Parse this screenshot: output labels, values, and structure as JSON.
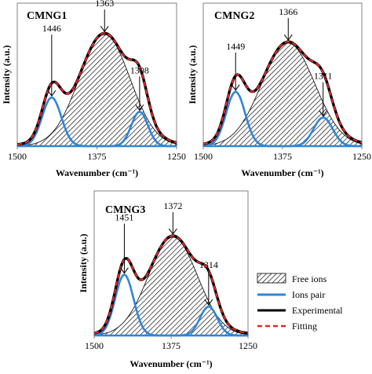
{
  "chart_data": [
    {
      "type": "area",
      "title": "CMNG1",
      "xlabel": "Wavenumber (cm⁻¹)",
      "ylabel": "Intensity (a.u.)",
      "xlim": [
        1500,
        1250
      ],
      "x_ticks": [
        "1500",
        "1375",
        "1250"
      ],
      "ylim": [
        0,
        1.0
      ],
      "components": [
        {
          "name": "Ions pair",
          "center": 1308,
          "height": 0.24,
          "sigma": 13
        },
        {
          "name": "Free ions",
          "center": 1363,
          "height": 0.78,
          "sigma": 40
        },
        {
          "name": "Ions pair",
          "center": 1446,
          "height": 0.34,
          "sigma": 15
        }
      ],
      "peak_labels": [
        "1308",
        "1363",
        "1446"
      ]
    },
    {
      "type": "area",
      "title": "CMNG2",
      "xlabel": "Wavenumber (cm⁻¹)",
      "ylabel": "Intensity (a.u.)",
      "xlim": [
        1500,
        1250
      ],
      "x_ticks": [
        "1500",
        "1375",
        "1250"
      ],
      "ylim": [
        0,
        1.0
      ],
      "components": [
        {
          "name": "Ions pair",
          "center": 1311,
          "height": 0.2,
          "sigma": 15
        },
        {
          "name": "Free ions",
          "center": 1366,
          "height": 0.72,
          "sigma": 42
        },
        {
          "name": "Ions pair",
          "center": 1449,
          "height": 0.38,
          "sigma": 15
        }
      ],
      "peak_labels": [
        "1311",
        "1366",
        "1449"
      ]
    },
    {
      "type": "area",
      "title": "CMNG3",
      "xlabel": "Wavenumber (cm⁻¹)",
      "ylabel": "Intensity (a.u.)",
      "xlim": [
        1500,
        1250
      ],
      "x_ticks": [
        "1500",
        "1375",
        "1250"
      ],
      "ylim": [
        0,
        1.0
      ],
      "components": [
        {
          "name": "Ions pair",
          "center": 1314,
          "height": 0.2,
          "sigma": 14
        },
        {
          "name": "Free ions",
          "center": 1372,
          "height": 0.68,
          "sigma": 40
        },
        {
          "name": "Ions pair",
          "center": 1451,
          "height": 0.42,
          "sigma": 15
        }
      ],
      "peak_labels": [
        "1314",
        "1372",
        "1451"
      ]
    }
  ],
  "legend": {
    "placement": "bottom-right",
    "items": [
      {
        "label": "Free ions",
        "style": "hatch",
        "color": "#000000"
      },
      {
        "label": "Ions pair",
        "style": "line",
        "color": "#2e86d8"
      },
      {
        "label": "Experimental",
        "style": "line",
        "color": "#000000"
      },
      {
        "label": "Fitting",
        "style": "dash",
        "color": "#e8262a"
      }
    ]
  },
  "colors": {
    "ions_pair": "#2e86d8",
    "experimental": "#000000",
    "fitting": "#e8262a",
    "axis": "#808080"
  }
}
